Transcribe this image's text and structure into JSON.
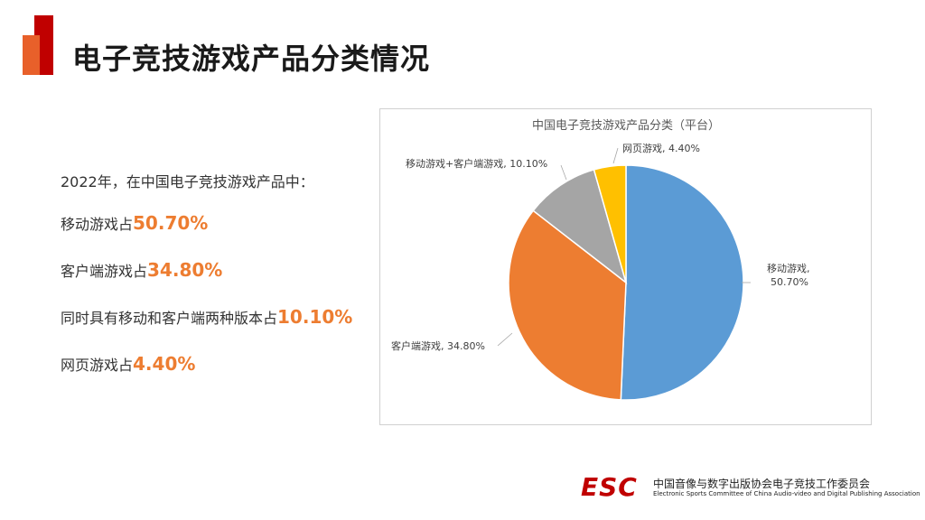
{
  "header": {
    "title": "电子竞技游戏产品分类情况"
  },
  "summary": {
    "intro": "2022年，在中国电子竞技游戏产品中：",
    "items": [
      {
        "label": "移动游戏占",
        "pct": "50.70%"
      },
      {
        "label": "客户端游戏占",
        "pct": "34.80%"
      },
      {
        "label": "同时具有移动和客户端两种版本占",
        "pct": "10.10%"
      },
      {
        "label": "网页游戏占",
        "pct": "4.40%"
      }
    ]
  },
  "chart_data": {
    "type": "pie",
    "title": "中国电子竞技游戏产品分类（平台）",
    "slices": [
      {
        "name": "移动游戏",
        "value": 50.7,
        "label": "50.70%",
        "color": "#5b9bd5"
      },
      {
        "name": "客户端游戏",
        "value": 34.8,
        "label": "34.80%",
        "color": "#ed7d31"
      },
      {
        "name": "移动游戏+客户端游戏",
        "value": 10.1,
        "label": "10.10%",
        "color": "#a5a5a5"
      },
      {
        "name": "网页游戏",
        "value": 4.4,
        "label": "4.40%",
        "color": "#ffc000"
      }
    ],
    "start": "12 o'clock",
    "direction": "clockwise"
  },
  "footer": {
    "logo": "ESC",
    "org_cn": "中国音像与数字出版协会电子竞技工作委员会",
    "org_en": "Electronic Sports Committee of China Audio-video and Digital Publishing Association"
  }
}
